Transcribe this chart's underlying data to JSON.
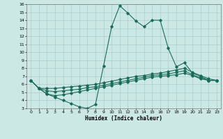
{
  "xlabel": "Humidex (Indice chaleur)",
  "bg_color": "#cce8e5",
  "grid_color": "#aacfcc",
  "line_color": "#1a6b5a",
  "xlim": [
    -0.5,
    23.5
  ],
  "ylim": [
    3,
    16
  ],
  "xticks": [
    0,
    1,
    2,
    3,
    4,
    5,
    6,
    7,
    8,
    9,
    10,
    11,
    12,
    13,
    14,
    15,
    16,
    17,
    18,
    19,
    20,
    21,
    22,
    23
  ],
  "yticks": [
    3,
    4,
    5,
    6,
    7,
    8,
    9,
    10,
    11,
    12,
    13,
    14,
    15,
    16
  ],
  "curve1_x": [
    0,
    1,
    2,
    3,
    4,
    5,
    6,
    7,
    8,
    9,
    10,
    11,
    12,
    13,
    14,
    15,
    16,
    17,
    18,
    19,
    20,
    21,
    22,
    23
  ],
  "curve1_y": [
    6.5,
    5.5,
    4.8,
    4.4,
    4.0,
    3.6,
    3.2,
    3.0,
    3.5,
    8.3,
    13.2,
    15.8,
    14.9,
    13.9,
    13.2,
    14.0,
    14.0,
    10.5,
    8.2,
    8.7,
    7.4,
    7.0,
    6.5,
    6.5
  ],
  "curve2_x": [
    0,
    1,
    2,
    3,
    4,
    5,
    6,
    7,
    8,
    9,
    10,
    11,
    12,
    13,
    14,
    15,
    16,
    17,
    18,
    19,
    20,
    21,
    22,
    23
  ],
  "curve2_y": [
    6.5,
    5.5,
    5.5,
    5.5,
    5.6,
    5.7,
    5.8,
    5.9,
    6.0,
    6.2,
    6.4,
    6.6,
    6.8,
    7.0,
    7.1,
    7.3,
    7.4,
    7.6,
    7.8,
    8.0,
    7.5,
    7.1,
    6.7,
    6.5
  ],
  "curve3_x": [
    0,
    1,
    2,
    3,
    4,
    5,
    6,
    7,
    8,
    9,
    10,
    11,
    12,
    13,
    14,
    15,
    16,
    17,
    18,
    19,
    20,
    21,
    22,
    23
  ],
  "curve3_y": [
    6.5,
    5.5,
    5.2,
    5.1,
    5.2,
    5.3,
    5.4,
    5.6,
    5.7,
    5.9,
    6.1,
    6.3,
    6.5,
    6.7,
    6.9,
    7.1,
    7.2,
    7.3,
    7.5,
    7.7,
    7.2,
    6.8,
    6.5,
    6.5
  ],
  "curve4_x": [
    0,
    1,
    2,
    3,
    4,
    5,
    6,
    7,
    8,
    9,
    10,
    11,
    12,
    13,
    14,
    15,
    16,
    17,
    18,
    19,
    20,
    21,
    22,
    23
  ],
  "curve4_y": [
    6.5,
    5.5,
    4.8,
    4.6,
    4.7,
    4.9,
    5.1,
    5.3,
    5.5,
    5.7,
    5.9,
    6.1,
    6.3,
    6.5,
    6.7,
    6.9,
    7.0,
    7.1,
    7.2,
    7.4,
    7.1,
    6.7,
    6.5,
    6.5
  ]
}
